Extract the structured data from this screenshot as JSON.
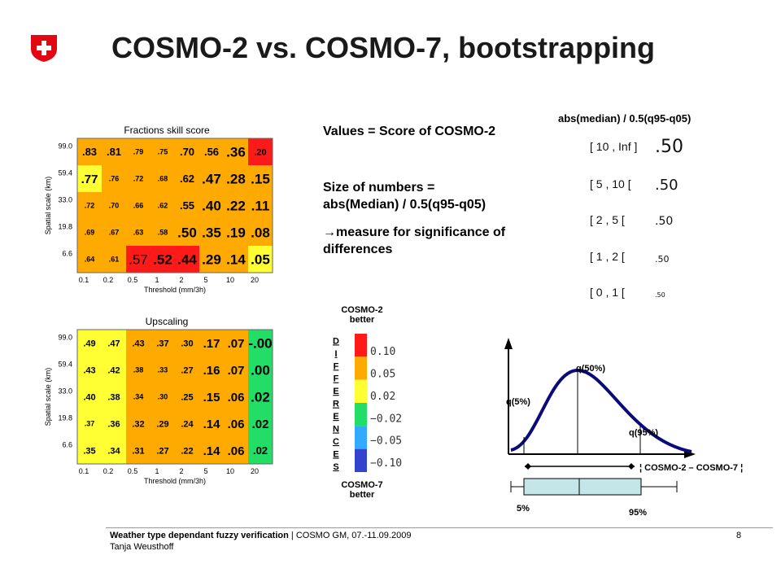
{
  "title": "COSMO-2 vs. COSMO-7, bootstrapping",
  "text": {
    "values": "Values = Score of COSMO-2",
    "size_line1": "Size of numbers =",
    "size_line2": "abs(Median) / 0.5(q95-q05)",
    "measure_arrow": "→",
    "measure_line1": "measure for significance of",
    "measure_line2": "differences"
  },
  "scale_legend": {
    "title": "abs(median) / 0.5(q95-q05)",
    "sample_text": ".50",
    "ranges": [
      "[ 10 , Inf ]",
      "[ 5 , 10 [",
      "[ 2 , 5 [",
      "[ 1 , 2 [",
      "[ 0 , 1 ["
    ]
  },
  "colorbar": {
    "top_label_1": "COSMO-2",
    "top_label_2": "better",
    "bottom_label_1": "COSMO-7",
    "bottom_label_2": "better",
    "vertical_word": "DIFFERENCES",
    "tick_labels": [
      "0.10",
      "0.05",
      "0.02",
      "−0.02",
      "−0.05",
      "−0.10"
    ],
    "colors": [
      "#ff1a1a",
      "#ffaa00",
      "#ffff33",
      "#22dd66",
      "#33aaff",
      "#3344cc"
    ]
  },
  "distribution": {
    "q50": "q(50%)",
    "q5": "q(5%)",
    "q95": "q(95%)",
    "axis_label": "¦ COSMO-2 – COSMO-7 ¦",
    "box_low": "5%",
    "box_high": "95%"
  },
  "footer": {
    "line1_bold": "Weather type dependant fuzzy verification",
    "line1_rest": " | COSMO GM, 07.-11.09.2009",
    "line2": "Tanja Weusthoff",
    "page": "8"
  },
  "chart_data": [
    {
      "type": "heatmap",
      "title": "Fractions skill score",
      "xlabel": "Threshold (mm/3h)",
      "ylabel": "Spatial scale (km)",
      "x": [
        "0.1",
        "0.2",
        "0.5",
        "1",
        "2",
        "5",
        "10",
        "20"
      ],
      "y": [
        "99.0",
        "59.4",
        "33.0",
        "19.8",
        "6.6"
      ],
      "cells": [
        [
          ".83",
          ".81",
          ".79",
          ".75",
          ".70",
          ".56",
          ".36",
          ".20"
        ],
        [
          ".77",
          ".76",
          ".72",
          ".68",
          ".62",
          ".47",
          ".28",
          ".15"
        ],
        [
          ".72",
          ".70",
          ".66",
          ".62",
          ".55",
          ".40",
          ".22",
          ".11"
        ],
        [
          ".69",
          ".67",
          ".63",
          ".58",
          ".50",
          ".35",
          ".19",
          ".08"
        ],
        [
          ".64",
          ".61",
          ".57",
          ".52",
          ".44",
          ".29",
          ".14",
          ".05"
        ]
      ],
      "colors": [
        [
          "#ffaa00",
          "#ffaa00",
          "#ffaa00",
          "#ffaa00",
          "#ffaa00",
          "#ffaa00",
          "#ffaa00",
          "#ff1a1a"
        ],
        [
          "#ffff33",
          "#ffaa00",
          "#ffaa00",
          "#ffaa00",
          "#ffaa00",
          "#ffaa00",
          "#ffaa00",
          "#ffaa00"
        ],
        [
          "#ffaa00",
          "#ffaa00",
          "#ffaa00",
          "#ffaa00",
          "#ffaa00",
          "#ffaa00",
          "#ffaa00",
          "#ffaa00"
        ],
        [
          "#ffaa00",
          "#ffaa00",
          "#ffaa00",
          "#ffaa00",
          "#ffaa00",
          "#ffaa00",
          "#ffaa00",
          "#ffaa00"
        ],
        [
          "#ffaa00",
          "#ffaa00",
          "#ff1a1a",
          "#ff1a1a",
          "#ff1a1a",
          "#ffaa00",
          "#ffaa00",
          "#ffff33"
        ]
      ],
      "significance": [
        [
          3,
          3,
          1,
          1,
          3,
          3,
          5,
          2
        ],
        [
          4,
          1,
          1,
          1,
          3,
          5,
          5,
          5
        ],
        [
          1,
          1,
          1,
          1,
          3,
          5,
          5,
          5
        ],
        [
          1,
          1,
          1,
          1,
          5,
          5,
          5,
          5
        ],
        [
          1,
          1,
          0,
          5,
          5,
          5,
          5,
          5
        ]
      ]
    },
    {
      "type": "heatmap",
      "title": "Upscaling",
      "xlabel": "Threshold (mm/3h)",
      "ylabel": "Spatial scale (km)",
      "x": [
        "0.1",
        "0.2",
        "0.5",
        "1",
        "2",
        "5",
        "10",
        "20"
      ],
      "y": [
        "99.0",
        "59.4",
        "33.0",
        "19.8",
        "6.6"
      ],
      "cells": [
        [
          ".49",
          ".47",
          ".43",
          ".37",
          ".30",
          ".17",
          ".07",
          "-.00"
        ],
        [
          ".43",
          ".42",
          ".38",
          ".33",
          ".27",
          ".16",
          ".07",
          ".00"
        ],
        [
          ".40",
          ".38",
          ".34",
          ".30",
          ".25",
          ".15",
          ".06",
          ".02"
        ],
        [
          ".37",
          ".36",
          ".32",
          ".29",
          ".24",
          ".14",
          ".06",
          ".02"
        ],
        [
          ".35",
          ".34",
          ".31",
          ".27",
          ".22",
          ".14",
          ".06",
          ".02"
        ]
      ],
      "colors": [
        [
          "#ffff33",
          "#ffff33",
          "#ffaa00",
          "#ffaa00",
          "#ffaa00",
          "#ffaa00",
          "#ffaa00",
          "#22dd66"
        ],
        [
          "#ffff33",
          "#ffff33",
          "#ffaa00",
          "#ffaa00",
          "#ffaa00",
          "#ffaa00",
          "#ffaa00",
          "#22dd66"
        ],
        [
          "#ffff33",
          "#ffff33",
          "#ffaa00",
          "#ffaa00",
          "#ffaa00",
          "#ffaa00",
          "#ffaa00",
          "#22dd66"
        ],
        [
          "#ffff33",
          "#ffff33",
          "#ffaa00",
          "#ffaa00",
          "#ffaa00",
          "#ffaa00",
          "#ffaa00",
          "#22dd66"
        ],
        [
          "#ffff33",
          "#ffff33",
          "#ffaa00",
          "#ffaa00",
          "#ffaa00",
          "#ffaa00",
          "#ffaa00",
          "#22dd66"
        ]
      ],
      "significance": [
        [
          2,
          2,
          2,
          2,
          2,
          4,
          4,
          5
        ],
        [
          2,
          2,
          1,
          1,
          2,
          4,
          4,
          5
        ],
        [
          2,
          2,
          1,
          1,
          2,
          4,
          4,
          5
        ],
        [
          1,
          2,
          2,
          2,
          2,
          4,
          4,
          4
        ],
        [
          2,
          2,
          2,
          2,
          2,
          4,
          4,
          3
        ]
      ]
    }
  ]
}
